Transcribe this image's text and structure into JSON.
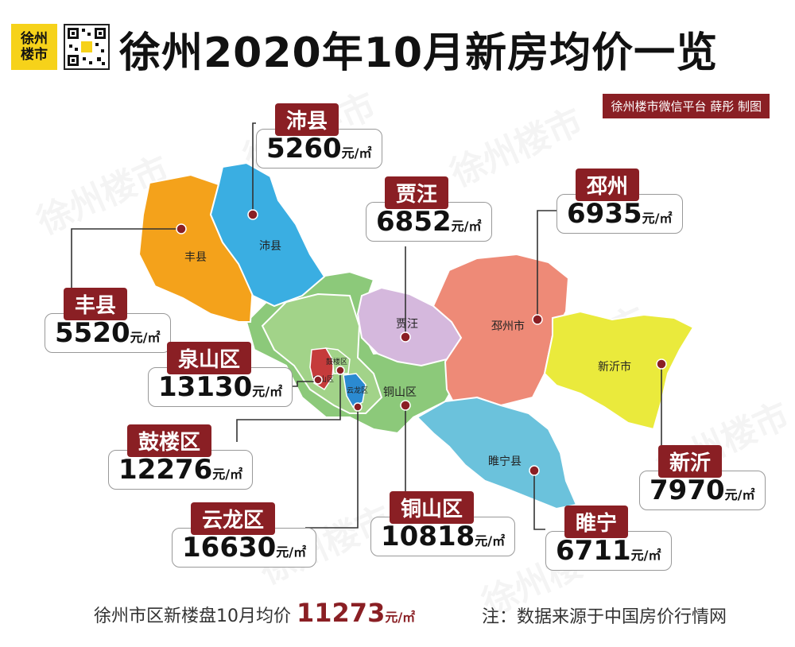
{
  "header": {
    "logo_line1": "徐州",
    "logo_line2": "楼市",
    "title": "徐州2020年10月新房均价一览",
    "credit": "徐州楼市微信平台 薛彤 制图"
  },
  "watermark_text": "徐州楼市",
  "unit": "元/㎡",
  "map_labels": {
    "fengxian": "丰县",
    "peixian": "沛县",
    "jiawang": "贾汪",
    "pizhou": "邳州市",
    "xinyi": "新沂市",
    "suining": "睢宁县",
    "tongshan": "铜山区",
    "yunlong": "云龙区",
    "gulou": "鼓楼区",
    "quanshan": "泉山区"
  },
  "districts": [
    {
      "name": "沛县",
      "price": "5260"
    },
    {
      "name": "贾汪",
      "price": "6852"
    },
    {
      "name": "邳州",
      "price": "6935"
    },
    {
      "name": "丰县",
      "price": "5520"
    },
    {
      "name": "泉山区",
      "price": "13130"
    },
    {
      "name": "鼓楼区",
      "price": "12276"
    },
    {
      "name": "云龙区",
      "price": "16630"
    },
    {
      "name": "铜山区",
      "price": "10818"
    },
    {
      "name": "睢宁",
      "price": "6711"
    },
    {
      "name": "新沂",
      "price": "7970"
    }
  ],
  "colors": {
    "accent": "#8a1f24",
    "fengxian": "#f4a21b",
    "peixian": "#3aaee2",
    "jiawang": "#d5b8dd",
    "pizhou": "#ee8a77",
    "xinyi": "#eaea3c",
    "suining": "#6bc2dc",
    "tongshan": "#8cc97a",
    "urban_green": "#a2d389",
    "quanshan": "#c53b3b",
    "yunlong": "#2b8ad1"
  },
  "footer": {
    "prefix": "徐州市区新楼盘10月均价",
    "avg": "11273",
    "unit": "元/㎡",
    "note": "注：数据来源于中国房价行情网"
  }
}
